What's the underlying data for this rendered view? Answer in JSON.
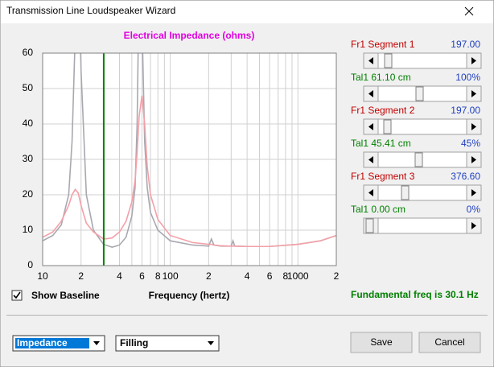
{
  "window": {
    "title": "Transmission Line Loudspeaker Wizard"
  },
  "chart_data": {
    "type": "line",
    "title": "Electrical Impedance (ohms)",
    "x_label": "Frequency (hertz)",
    "x": [
      10,
      12,
      14,
      16,
      17,
      18,
      19,
      20,
      22,
      25,
      30,
      35,
      40,
      45,
      50,
      53,
      55,
      57,
      60,
      63,
      66,
      70,
      80,
      100,
      150,
      200,
      210,
      220,
      250,
      300,
      310,
      320,
      400,
      600,
      1000,
      1500,
      2000
    ],
    "series": [
      {
        "color": "#a8a8b0",
        "values": [
          7,
          8.5,
          11.5,
          20,
          35,
          65,
          90,
          55,
          20,
          10,
          6,
          5.2,
          5.8,
          8,
          14,
          22,
          40,
          80,
          70,
          35,
          22,
          15,
          10,
          7,
          5.8,
          5.5,
          7.5,
          5.8,
          5.5,
          5.5,
          7,
          5.5,
          5.4,
          5.4,
          6,
          7,
          8.5
        ]
      },
      {
        "color": "#f4a0a8",
        "values": [
          8,
          9.5,
          12.5,
          17,
          20,
          21.5,
          20.5,
          17,
          12,
          9.5,
          7.5,
          7.8,
          9.5,
          12.5,
          18,
          24,
          32,
          42,
          48,
          40,
          28,
          20,
          13,
          8.5,
          6.5,
          6,
          6,
          5.8,
          5.6,
          5.5,
          5.5,
          5.5,
          5.4,
          5.4,
          6,
          7,
          8.5
        ]
      }
    ],
    "xlim": [
      10,
      2000
    ],
    "log_x": true,
    "xticks": [
      10,
      {
        "value": 20,
        "label": "2"
      },
      {
        "value": 40,
        "label": "4"
      },
      {
        "value": 60,
        "label": "6"
      },
      {
        "value": 80,
        "label": "8"
      },
      100,
      {
        "value": 200,
        "label": "2"
      },
      {
        "value": 400,
        "label": "4"
      },
      {
        "value": 600,
        "label": "6"
      },
      {
        "value": 800,
        "label": "8"
      },
      1000,
      {
        "value": 2000,
        "label": "2"
      }
    ],
    "minor_xticks": [
      30,
      50,
      70,
      90,
      300,
      500,
      700,
      900
    ],
    "ylim": [
      0,
      60
    ],
    "yticks": [
      0,
      10,
      20,
      30,
      40,
      50,
      60
    ],
    "grid": true,
    "fundamental": {
      "label": "Fundamental freq is",
      "value": 30.1,
      "unit": "Hz",
      "color": "#008000"
    }
  },
  "sliders": [
    {
      "label": "Fr1  Segment 1",
      "value": "197.00"
    },
    {
      "label": "Tal1  61.10 cm",
      "value": "100%"
    },
    {
      "label": "Fr1  Segment 2",
      "value": "197.00"
    },
    {
      "label": "Tal1  45.41 cm",
      "value": "45%"
    },
    {
      "label": "Fr1  Segment 3",
      "value": "376.60"
    },
    {
      "label": "Tal1  0.00 cm",
      "value": "0%"
    }
  ],
  "controls": {
    "baseline_checkbox": "Show Baseline",
    "baseline_checked": true,
    "view_dropdown": "Impedance",
    "material_dropdown": "Filling",
    "save": "Save",
    "cancel": "Cancel"
  }
}
